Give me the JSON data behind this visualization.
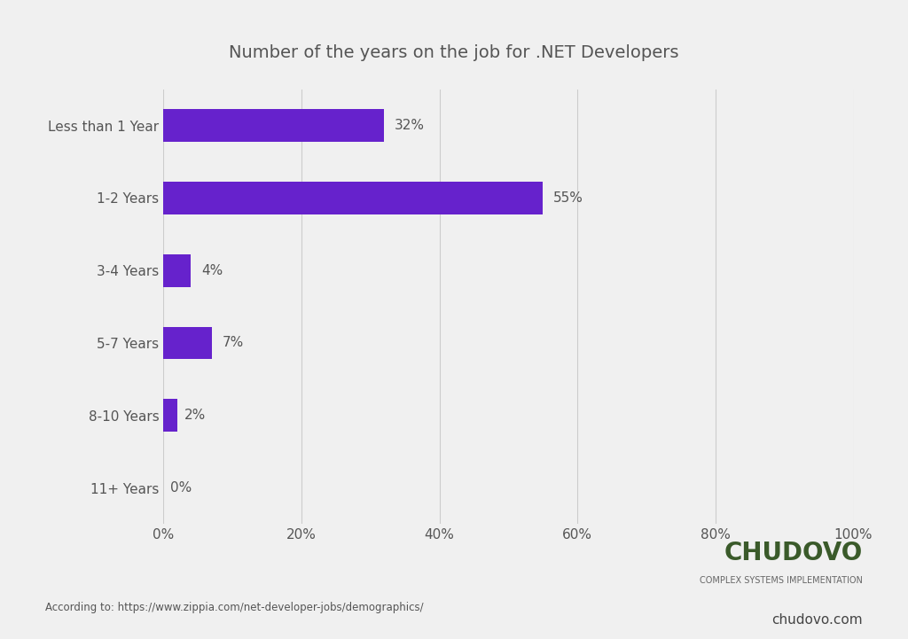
{
  "title": "Number of the years on the job for .NET Developers",
  "categories": [
    "Less than 1 Year",
    "1-2 Years",
    "3-4 Years",
    "5-7 Years",
    "8-10 Years",
    "11+ Years"
  ],
  "values": [
    32,
    55,
    4,
    7,
    2,
    0
  ],
  "labels": [
    "32%",
    "55%",
    "4%",
    "7%",
    "2%",
    "0%"
  ],
  "bar_color": "#6622cc",
  "background_color": "#f0f0f0",
  "title_fontsize": 14,
  "label_fontsize": 11,
  "tick_fontsize": 11,
  "xlabel_ticks": [
    0,
    20,
    40,
    60,
    80,
    100
  ],
  "xlabel_labels": [
    "0%",
    "20%",
    "40%",
    "60%",
    "80%",
    "100%"
  ],
  "grid_color": "#cccccc",
  "text_color": "#555555",
  "footer_left": "According to: https://www.zippia.com/net-developer-jobs/demographics/",
  "footer_right": "chudovo.com",
  "chudovo_text": "CHUDOVO",
  "chudovo_sub": "COMPLEX SYSTEMS IMPLEMENTATION"
}
